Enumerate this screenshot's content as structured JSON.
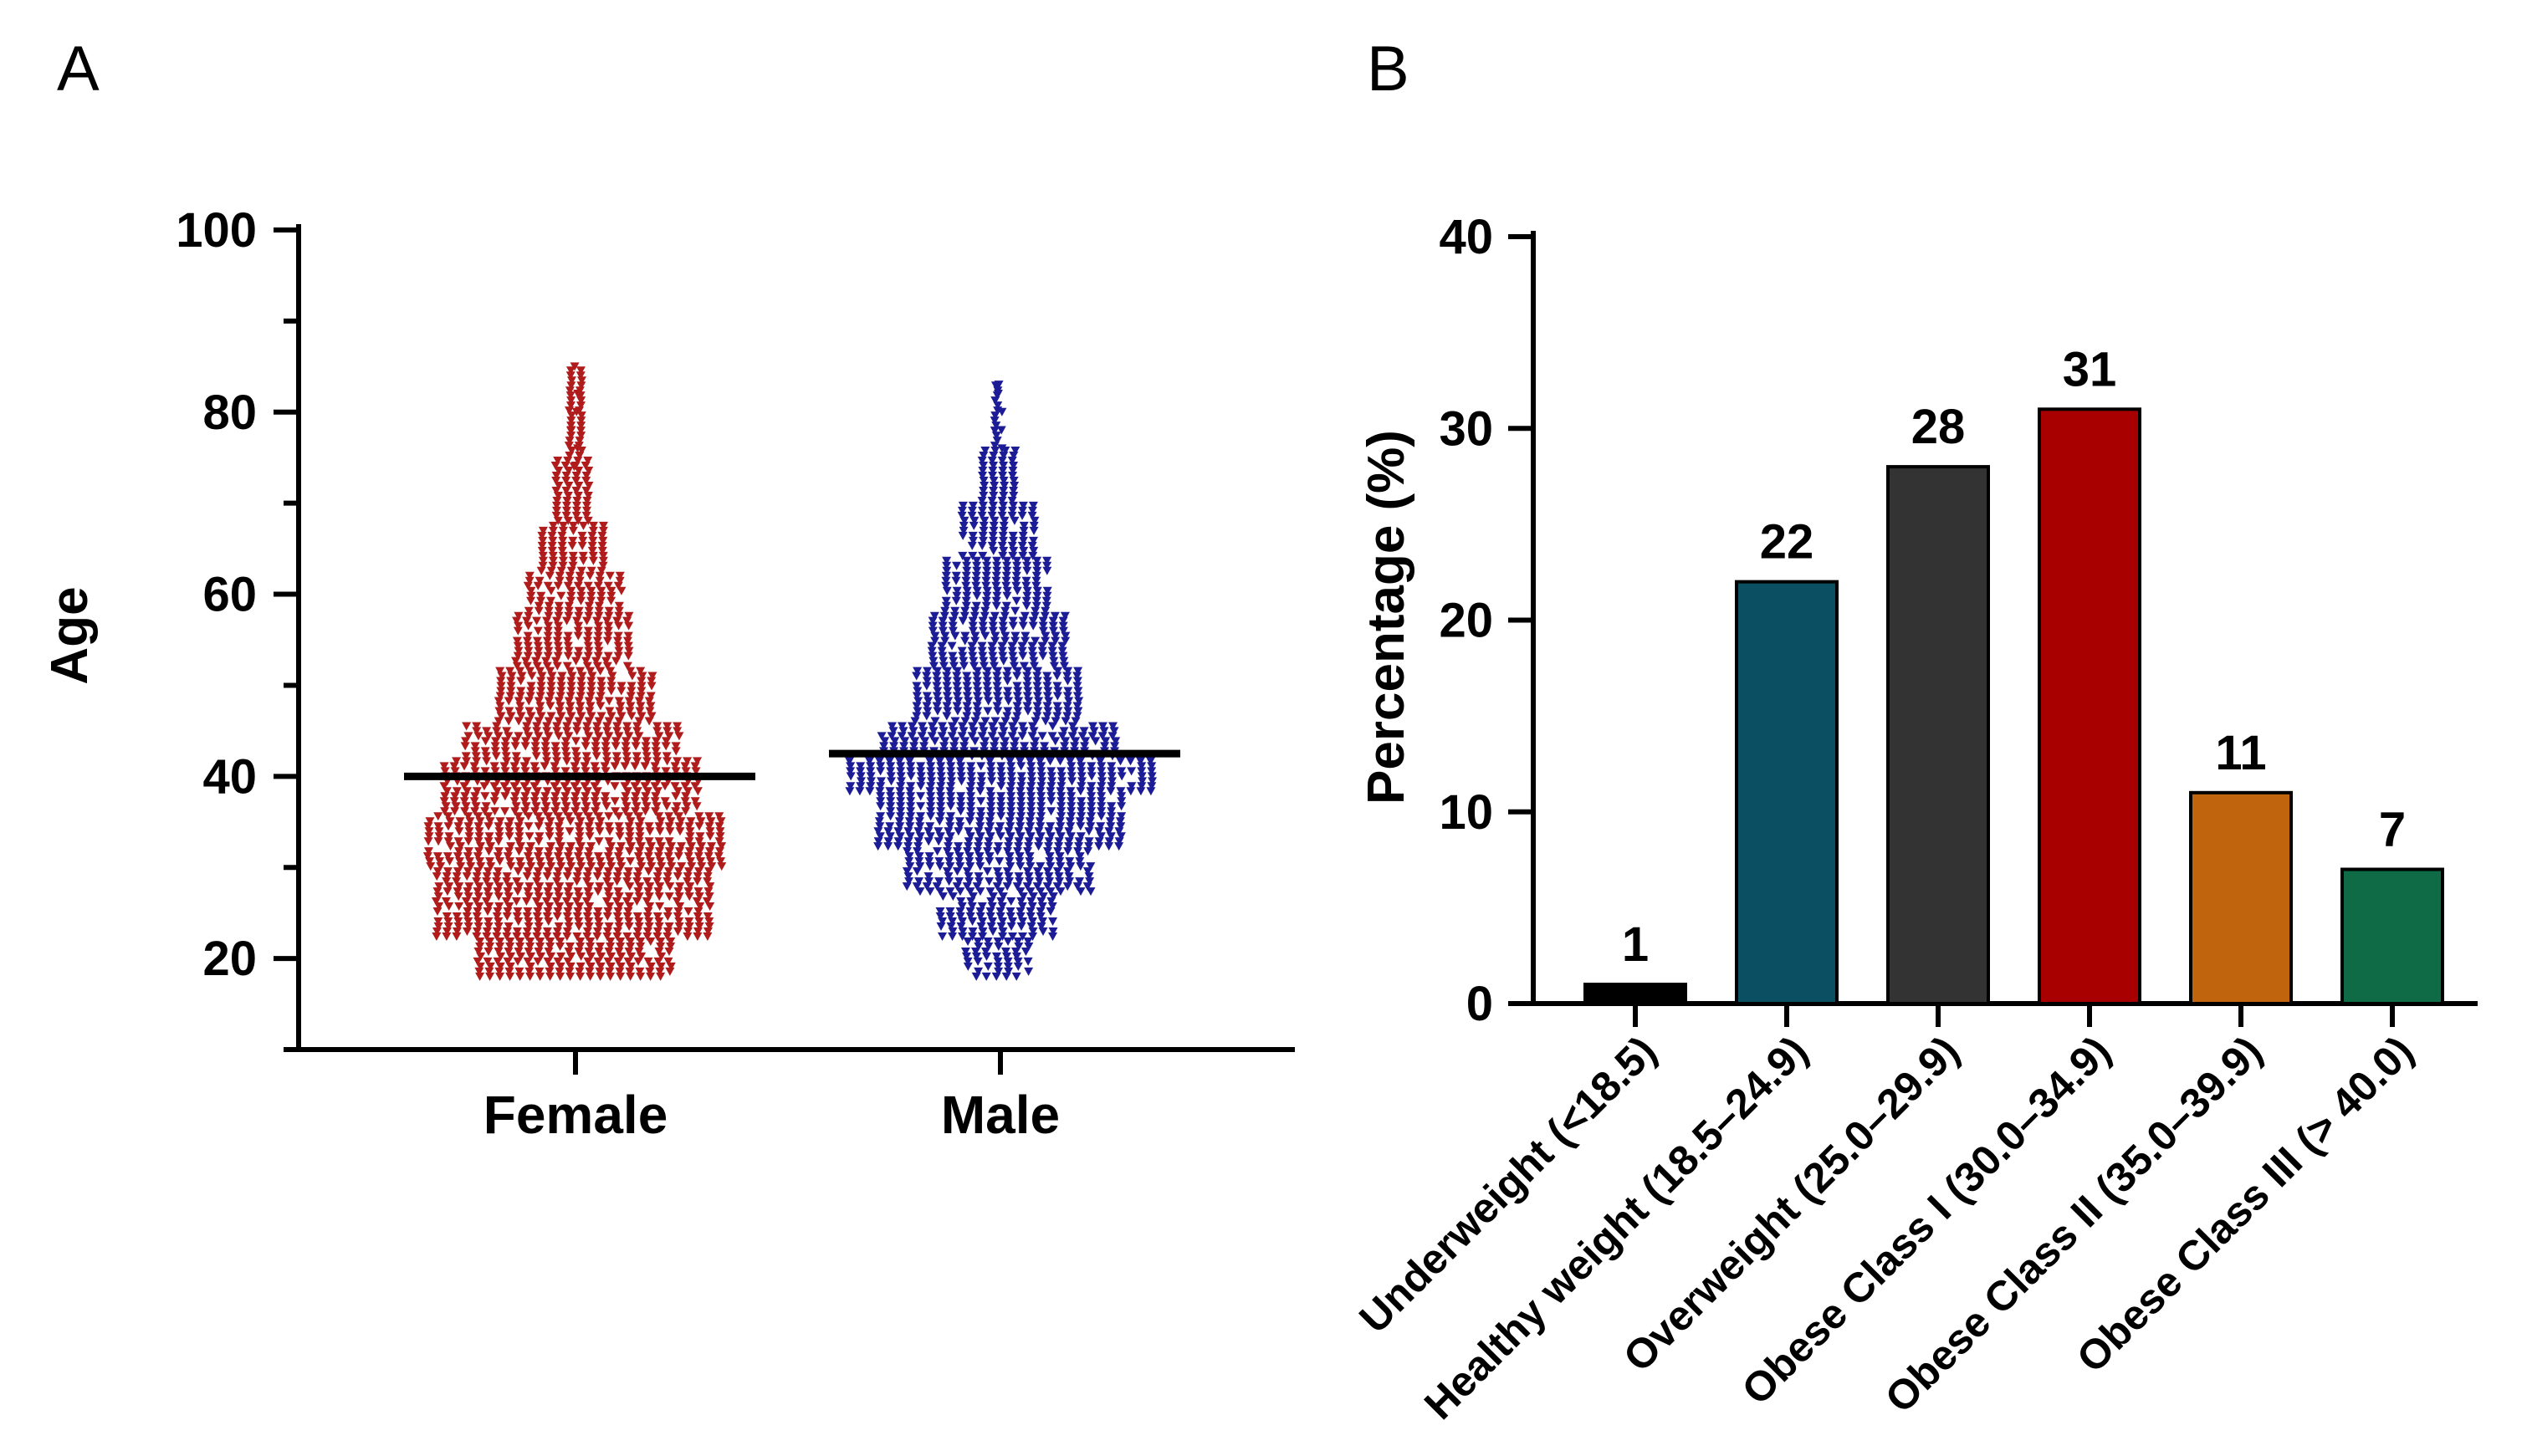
{
  "panels": {
    "a_label": "A",
    "b_label": "B"
  },
  "chart_data": [
    {
      "type": "scatter",
      "subtype": "beeswarm",
      "title": "",
      "xlabel": "",
      "ylabel": "Age",
      "ylim": [
        10,
        100
      ],
      "yticks": [
        20,
        40,
        60,
        80,
        100
      ],
      "categories": [
        "Female",
        "Male"
      ],
      "series": [
        {
          "name": "Female",
          "color": "#b01c1c",
          "marker": "down-triangle",
          "median": 40,
          "min": 18,
          "max": 85
        },
        {
          "name": "Male",
          "color": "#1c1c96",
          "marker": "down-triangle",
          "median": 42.5,
          "min": 18,
          "max": 83
        }
      ]
    },
    {
      "type": "bar",
      "title": "",
      "xlabel": "",
      "ylabel": "Percentage (%)",
      "ylim": [
        0,
        40
      ],
      "yticks": [
        0,
        10,
        20,
        30,
        40
      ],
      "categories": [
        "Underweight (<18.5)",
        "Healthy weight (18.5–24.9)",
        "Overweight (25.0–29.9)",
        "Obese Class I (30.0–34.9)",
        "Obese Class II (35.0–39.9)",
        "Obese Class III (> 40.0)"
      ],
      "values": [
        1,
        22,
        28,
        31,
        11,
        7
      ],
      "value_labels": [
        "1",
        "22",
        "28",
        "31",
        "11",
        "7"
      ],
      "colors": [
        "#000000",
        "#0b4f63",
        "#333333",
        "#a80000",
        "#c0650d",
        "#0e6b45"
      ]
    }
  ]
}
